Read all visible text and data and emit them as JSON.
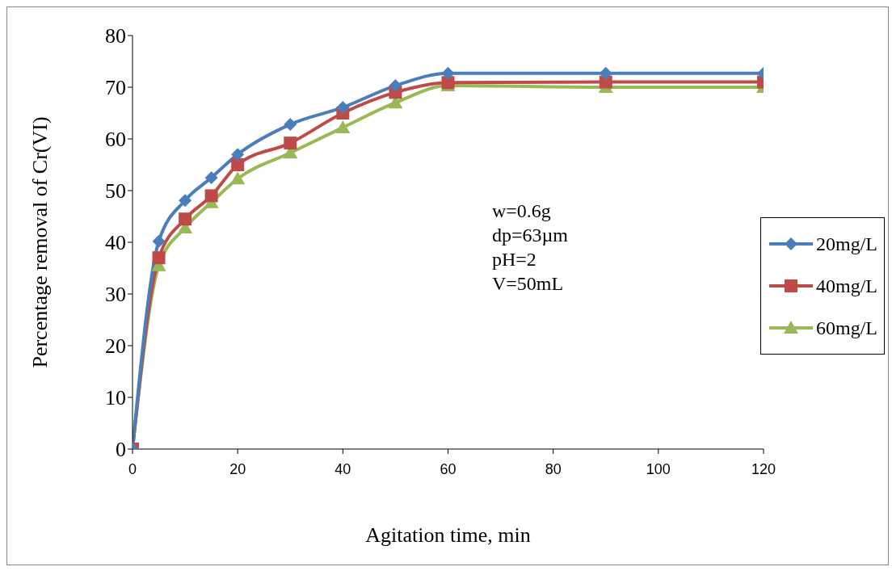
{
  "chart_data": {
    "type": "line",
    "xlabel": "Agitation time, min",
    "ylabel": "Percentage removal  of Cr(VI)",
    "x": [
      0,
      5,
      10,
      15,
      20,
      30,
      40,
      50,
      60,
      90,
      120
    ],
    "series": [
      {
        "name": "20mg/L",
        "color": "#4a7ebb",
        "marker": "diamond",
        "values": [
          0,
          40.2,
          48.1,
          52.5,
          57,
          62.8,
          66.1,
          70.3,
          72.7,
          72.7,
          72.7
        ]
      },
      {
        "name": "40mg/L",
        "color": "#be4b48",
        "marker": "square",
        "values": [
          0,
          37,
          44.5,
          49,
          55,
          59.2,
          65,
          69,
          70.9,
          71,
          71
        ]
      },
      {
        "name": "60mg/L",
        "color": "#98b954",
        "marker": "triangle",
        "values": [
          0,
          35.5,
          42.8,
          47.7,
          52.3,
          57.3,
          62.2,
          67,
          70.3,
          70,
          70
        ]
      }
    ],
    "xlim": [
      0,
      120
    ],
    "xticks": [
      0,
      20,
      40,
      60,
      80,
      100,
      120
    ],
    "ylim": [
      0,
      80
    ],
    "yticks": [
      0,
      10,
      20,
      30,
      40,
      50,
      60,
      70,
      80
    ],
    "annotations": [
      "w=0.6g",
      "dp=63µm",
      "pH=2",
      "V=50mL"
    ],
    "grid": false,
    "legend": "right",
    "line_style": "solid"
  }
}
